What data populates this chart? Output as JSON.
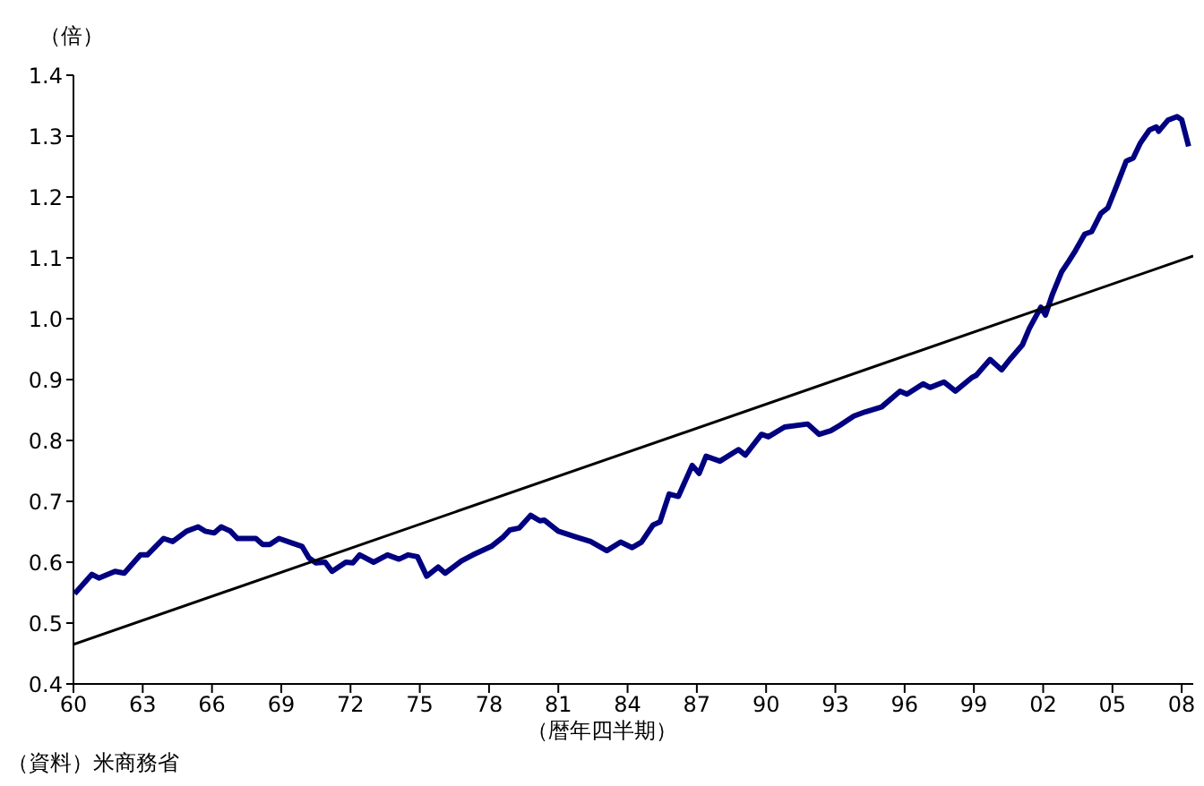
{
  "chart_data": {
    "type": "line",
    "xlabel": "（暦年四半期）",
    "ylabel": "（倍）",
    "annotations": [
      "（資料）米商務省"
    ],
    "xlim": [
      1960,
      2008.5
    ],
    "ylim": [
      0.4,
      1.4
    ],
    "xticks": [
      {
        "value": 1960,
        "label": "60"
      },
      {
        "value": 1963,
        "label": "63"
      },
      {
        "value": 1966,
        "label": "66"
      },
      {
        "value": 1969,
        "label": "69"
      },
      {
        "value": 1972,
        "label": "72"
      },
      {
        "value": 1975,
        "label": "75"
      },
      {
        "value": 1978,
        "label": "78"
      },
      {
        "value": 1981,
        "label": "81"
      },
      {
        "value": 1984,
        "label": "84"
      },
      {
        "value": 1987,
        "label": "87"
      },
      {
        "value": 1990,
        "label": "90"
      },
      {
        "value": 1993,
        "label": "93"
      },
      {
        "value": 1996,
        "label": "96"
      },
      {
        "value": 1999,
        "label": "99"
      },
      {
        "value": 2002,
        "label": "02"
      },
      {
        "value": 2005,
        "label": "05"
      },
      {
        "value": 2008,
        "label": "08"
      }
    ],
    "yticks": [
      {
        "value": 0.4,
        "label": "0.4"
      },
      {
        "value": 0.5,
        "label": "0.5"
      },
      {
        "value": 0.6,
        "label": "0.6"
      },
      {
        "value": 0.7,
        "label": "0.7"
      },
      {
        "value": 0.8,
        "label": "0.8"
      },
      {
        "value": 0.9,
        "label": "0.9"
      },
      {
        "value": 1.0,
        "label": "1.0"
      },
      {
        "value": 1.1,
        "label": "1.1"
      },
      {
        "value": 1.2,
        "label": "1.2"
      },
      {
        "value": 1.3,
        "label": "1.3"
      },
      {
        "value": 1.4,
        "label": "1.4"
      }
    ],
    "marker": "none",
    "line_style": "solid",
    "series": [
      {
        "color": "#000080",
        "x": [
          1960.05,
          1960.8,
          1961.1,
          1961.8,
          1962.2,
          1962.9,
          1963.2,
          1963.9,
          1964.3,
          1964.9,
          1965.4,
          1965.7,
          1966.1,
          1966.4,
          1966.8,
          1967.1,
          1967.9,
          1968.2,
          1968.5,
          1968.9,
          1969.5,
          1969.9,
          1970.2,
          1970.5,
          1970.9,
          1971.2,
          1971.8,
          1972.1,
          1972.4,
          1973.0,
          1973.6,
          1974.1,
          1974.5,
          1974.9,
          1975.3,
          1975.8,
          1976.1,
          1976.8,
          1977.3,
          1978.1,
          1978.6,
          1978.9,
          1979.3,
          1979.8,
          1980.2,
          1980.4,
          1981.0,
          1981.8,
          1982.4,
          1983.1,
          1983.7,
          1984.2,
          1984.6,
          1985.1,
          1985.4,
          1985.8,
          1986.2,
          1986.8,
          1987.1,
          1987.4,
          1988.0,
          1988.8,
          1989.1,
          1989.8,
          1990.1,
          1990.8,
          1991.8,
          1992.3,
          1992.8,
          1993.2,
          1993.8,
          1994.3,
          1995.0,
          1995.8,
          1996.1,
          1996.8,
          1997.1,
          1997.7,
          1998.2,
          1998.9,
          1999.1,
          1999.7,
          2000.2,
          2000.6,
          2001.1,
          2001.4,
          2001.9,
          2002.1,
          2002.4,
          2002.8,
          2003.1,
          2003.4,
          2003.8,
          2004.1,
          2004.5,
          2004.8,
          2005.2,
          2005.6,
          2005.9,
          2006.2,
          2006.6,
          2006.9,
          2007.0,
          2007.4,
          2007.8,
          2008.0,
          2008.3
        ],
        "values": [
          0.548,
          0.58,
          0.574,
          0.585,
          0.582,
          0.612,
          0.612,
          0.639,
          0.634,
          0.651,
          0.658,
          0.651,
          0.648,
          0.658,
          0.651,
          0.639,
          0.639,
          0.629,
          0.629,
          0.639,
          0.631,
          0.626,
          0.607,
          0.599,
          0.6,
          0.585,
          0.6,
          0.599,
          0.612,
          0.6,
          0.612,
          0.605,
          0.612,
          0.609,
          0.577,
          0.592,
          0.582,
          0.602,
          0.612,
          0.626,
          0.641,
          0.653,
          0.656,
          0.677,
          0.668,
          0.669,
          0.651,
          0.641,
          0.634,
          0.619,
          0.633,
          0.624,
          0.633,
          0.661,
          0.666,
          0.712,
          0.708,
          0.759,
          0.746,
          0.774,
          0.766,
          0.785,
          0.776,
          0.81,
          0.806,
          0.822,
          0.827,
          0.81,
          0.816,
          0.825,
          0.84,
          0.847,
          0.855,
          0.881,
          0.876,
          0.893,
          0.887,
          0.896,
          0.881,
          0.903,
          0.907,
          0.933,
          0.916,
          0.935,
          0.957,
          0.984,
          1.019,
          1.006,
          1.04,
          1.077,
          1.094,
          1.112,
          1.139,
          1.143,
          1.173,
          1.182,
          1.22,
          1.259,
          1.264,
          1.288,
          1.31,
          1.315,
          1.308,
          1.326,
          1.332,
          1.327,
          1.283
        ]
      },
      {
        "color": "#000000",
        "x": [
          1960,
          2008.5
        ],
        "values": [
          0.465,
          1.103
        ]
      }
    ]
  }
}
